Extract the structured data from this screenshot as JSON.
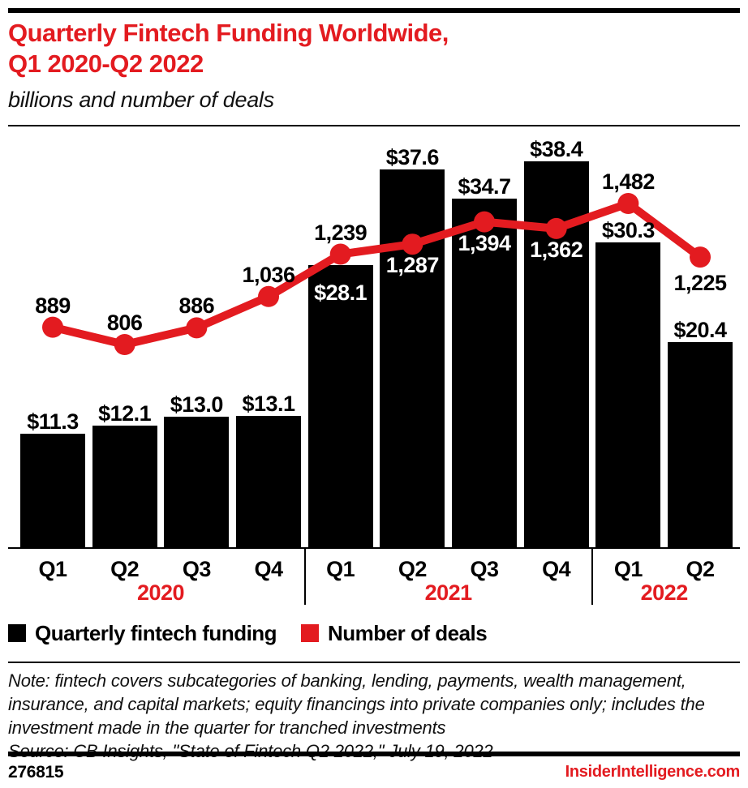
{
  "header": {
    "title_line1": "Quarterly Fintech Funding Worldwide,",
    "title_line2": "Q1 2020-Q2 2022",
    "subtitle": "billions and number of deals"
  },
  "chart_data": {
    "type": "combo",
    "categories": [
      "Q1",
      "Q2",
      "Q3",
      "Q4",
      "Q1",
      "Q2",
      "Q3",
      "Q4",
      "Q1",
      "Q2"
    ],
    "year_groups": [
      {
        "label": "2020",
        "quarters": 4
      },
      {
        "label": "2021",
        "quarters": 4
      },
      {
        "label": "2022",
        "quarters": 2
      }
    ],
    "series": [
      {
        "name": "Quarterly fintech funding",
        "type": "bar",
        "unit": "billions of dollars",
        "color": "#000000",
        "values": [
          11.3,
          12.1,
          13.0,
          13.1,
          28.1,
          37.6,
          34.7,
          38.4,
          30.3,
          20.4
        ],
        "labels": [
          "$11.3",
          "$12.1",
          "$13.0",
          "$13.1",
          "$28.1",
          "$37.6",
          "$34.7",
          "$38.4",
          "$30.3",
          "$20.4"
        ],
        "label_placement": [
          "above",
          "above",
          "above",
          "above",
          "inside",
          "above",
          "above",
          "above",
          "above",
          "above"
        ]
      },
      {
        "name": "Number of deals",
        "type": "line",
        "unit": "deals",
        "color": "#e31b20",
        "values": [
          889,
          806,
          886,
          1036,
          1239,
          1287,
          1394,
          1362,
          1482,
          1225
        ],
        "labels": [
          "889",
          "806",
          "886",
          "1,036",
          "1,239",
          "1,287",
          "1,394",
          "1,362",
          "1,482",
          "1,225"
        ],
        "label_placement": [
          "above",
          "above",
          "above",
          "above",
          "above",
          "below-inside",
          "below-inside",
          "below-inside",
          "above",
          "below"
        ]
      }
    ],
    "value_axes_hidden": true,
    "grid": false,
    "legend_position": "bottom"
  },
  "note": {
    "lines": [
      "Note: fintech covers subcategories of banking, lending, payments, wealth management,",
      "insurance, and capital markets; equity financings into private companies only; includes the",
      "investment made in the quarter for tranched investments"
    ],
    "source": "Source: CB Insights, \"State of Fintech Q2 2022,\" July 19, 2022"
  },
  "footer": {
    "chart_id": "276815",
    "brand": "InsiderIntelligence.com"
  },
  "colors": {
    "accent_red": "#e31b20",
    "series_black": "#000000"
  }
}
